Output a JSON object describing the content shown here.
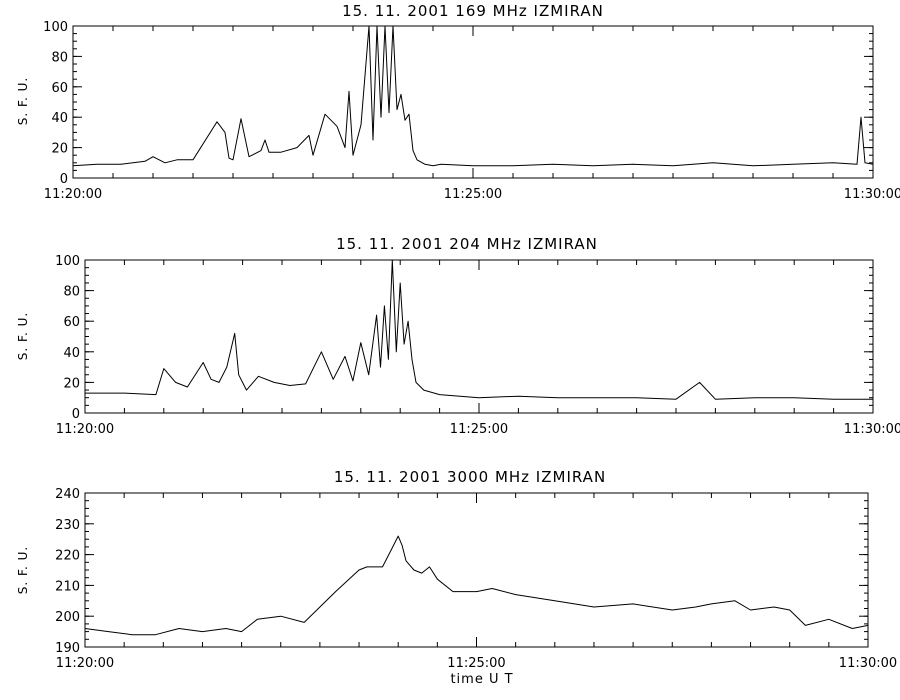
{
  "figure": {
    "xlabel": "time  U T"
  },
  "chart_data": [
    {
      "type": "line",
      "title": "15.  11.  2001    169 MHz    IZMIRAN",
      "ylabel": "S. F. U.",
      "xlabel": "",
      "x_range_minutes": [
        0,
        10
      ],
      "x_tick_labels": [
        "11:20:00",
        "11:25:00",
        "11:30:00"
      ],
      "ylim": [
        0,
        100
      ],
      "y_ticks": [
        0,
        20,
        40,
        60,
        80,
        100
      ],
      "series": [
        {
          "x": [
            0,
            0.3,
            0.6,
            0.9,
            1.0,
            1.15,
            1.3,
            1.5,
            1.8,
            1.9,
            1.95,
            2.0,
            2.1,
            2.2,
            2.35,
            2.4,
            2.45,
            2.6,
            2.8,
            2.95,
            3.0,
            3.15,
            3.3,
            3.4,
            3.45,
            3.5,
            3.6,
            3.7,
            3.75,
            3.8,
            3.85,
            3.9,
            3.95,
            4.0,
            4.05,
            4.1,
            4.15,
            4.2,
            4.25,
            4.3,
            4.4,
            4.5,
            4.6,
            5.0,
            5.5,
            6.0,
            6.5,
            7.0,
            7.5,
            8.0,
            8.5,
            9.0,
            9.5,
            9.8,
            9.85,
            9.9,
            10.0
          ],
          "y": [
            8,
            9,
            9,
            11,
            14,
            10,
            12,
            12,
            37,
            30,
            13,
            12,
            39,
            14,
            18,
            25,
            17,
            17,
            20,
            28,
            15,
            42,
            34,
            20,
            57,
            15,
            35,
            100,
            25,
            100,
            40,
            100,
            43,
            100,
            45,
            55,
            38,
            42,
            18,
            12,
            9,
            8,
            9,
            8,
            8,
            9,
            8,
            9,
            8,
            10,
            8,
            9,
            10,
            9,
            40,
            10,
            9
          ]
        }
      ]
    },
    {
      "type": "line",
      "title": "15.  11.  2001    204 MHz    IZMIRAN",
      "ylabel": "S. F. U.",
      "xlabel": "",
      "x_range_minutes": [
        0,
        10
      ],
      "x_tick_labels": [
        "11:20:00",
        "11:25:00",
        "11:30:00"
      ],
      "ylim": [
        0,
        100
      ],
      "y_ticks": [
        0,
        20,
        40,
        60,
        80,
        100
      ],
      "series": [
        {
          "x": [
            0,
            0.5,
            0.9,
            1.0,
            1.15,
            1.3,
            1.5,
            1.6,
            1.7,
            1.8,
            1.9,
            1.95,
            2.05,
            2.2,
            2.4,
            2.6,
            2.8,
            3.0,
            3.15,
            3.3,
            3.4,
            3.5,
            3.6,
            3.7,
            3.75,
            3.8,
            3.85,
            3.9,
            3.95,
            4.0,
            4.05,
            4.1,
            4.15,
            4.2,
            4.3,
            4.5,
            5.0,
            5.5,
            6.0,
            7.0,
            7.5,
            7.8,
            8.0,
            8.5,
            9.0,
            9.5,
            10.0
          ],
          "y": [
            13,
            13,
            12,
            29,
            20,
            17,
            33,
            22,
            20,
            30,
            52,
            25,
            15,
            24,
            20,
            18,
            19,
            40,
            22,
            37,
            21,
            46,
            25,
            64,
            30,
            70,
            35,
            100,
            40,
            85,
            45,
            60,
            35,
            20,
            15,
            12,
            10,
            11,
            10,
            10,
            9,
            20,
            9,
            10,
            10,
            9,
            9
          ]
        }
      ]
    },
    {
      "type": "line",
      "title": "15.  11.  2001    3000 MHz    IZMIRAN",
      "ylabel": "S. F. U.",
      "xlabel": "time  U T",
      "x_range_minutes": [
        0,
        10
      ],
      "x_tick_labels": [
        "11:20:00",
        "11:25:00",
        "11:30:00"
      ],
      "ylim": [
        190,
        240
      ],
      "y_ticks": [
        190,
        200,
        210,
        220,
        230,
        240
      ],
      "series": [
        {
          "x": [
            0,
            0.3,
            0.6,
            0.9,
            1.2,
            1.5,
            1.8,
            2.0,
            2.2,
            2.5,
            2.8,
            3.0,
            3.2,
            3.5,
            3.6,
            3.8,
            3.9,
            4.0,
            4.05,
            4.1,
            4.2,
            4.3,
            4.4,
            4.5,
            4.7,
            5.0,
            5.2,
            5.5,
            6.0,
            6.5,
            7.0,
            7.5,
            7.8,
            8.0,
            8.3,
            8.5,
            8.8,
            9.0,
            9.2,
            9.5,
            9.8,
            10.0
          ],
          "y": [
            196,
            195,
            194,
            194,
            196,
            195,
            196,
            195,
            199,
            200,
            198,
            203,
            208,
            215,
            216,
            216,
            221,
            226,
            223,
            218,
            215,
            214,
            216,
            212,
            208,
            208,
            209,
            207,
            205,
            203,
            204,
            202,
            203,
            204,
            205,
            202,
            203,
            202,
            197,
            199,
            196,
            197
          ]
        }
      ]
    }
  ]
}
